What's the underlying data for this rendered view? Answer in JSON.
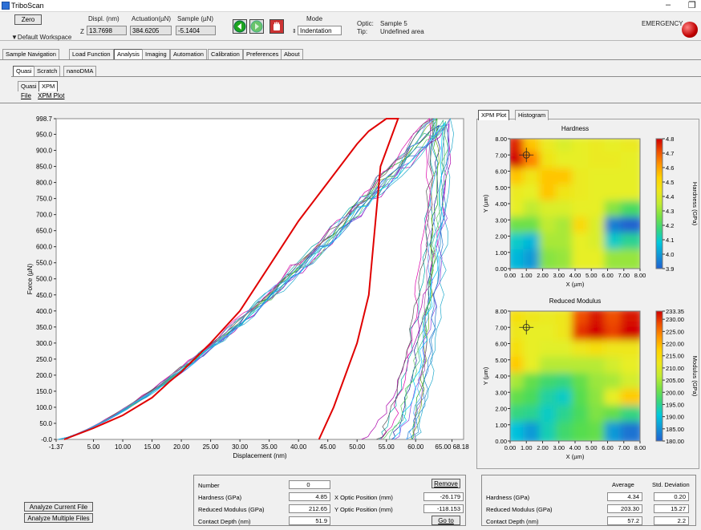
{
  "window": {
    "title": "TriboScan",
    "minimize": "–",
    "restore": "❐"
  },
  "toolbar": {
    "zero_label": "Zero",
    "z_label": "Z",
    "displ_label": "Displ. (nm)",
    "displ_value": "13.7698",
    "actuation_label": "Actuation(µN)",
    "actuation_value": "384.6205",
    "sample_label": "Sample (µN)",
    "sample_value": "-5.1404",
    "mode_label": "Mode",
    "mode_value": "Indentation",
    "optic_label": "Optic:",
    "optic_value": "Sample 5",
    "tip_label": "Tip:",
    "tip_value": "Undefined area",
    "emergency_label": "EMERGENCY",
    "workspace_label": "Default Workspace"
  },
  "main_tabs": [
    "Sample Navigation",
    "Load Function",
    "Analysis",
    "Imaging",
    "Automation",
    "Calibration",
    "Preferences",
    "About"
  ],
  "sub_tabs": [
    "Quasi",
    "Scratch",
    "nanoDMA"
  ],
  "sub_sub_tabs": [
    "Quasi",
    "XPM"
  ],
  "menu": [
    "File",
    "XPM Plot"
  ],
  "right_tabs": [
    "XPM Plot",
    "Histogram"
  ],
  "colors": {
    "accent_red": "#e00000",
    "heat_high": "#d00000",
    "heat_low": "#2060d0"
  },
  "chart_data": [
    {
      "type": "line",
      "title": "",
      "xlabel": "Displacement (nm)",
      "ylabel": "Force (µN)",
      "xlim": [
        -1.37,
        68.18
      ],
      "ylim": [
        -0.0,
        998.7
      ],
      "x_ticks": [
        "-1.37",
        "5.00",
        "10.00",
        "15.00",
        "20.00",
        "25.00",
        "30.00",
        "35.00",
        "40.00",
        "45.00",
        "50.00",
        "55.00",
        "60.00",
        "65.00 68.18"
      ],
      "y_ticks": [
        "998.7",
        "950.0",
        "900.0",
        "850.0",
        "800.0",
        "750.0",
        "700.0",
        "650.0",
        "600.0",
        "550.0",
        "500.0",
        "450.0",
        "400.0",
        "350.0",
        "300.0",
        "250.0",
        "200.0",
        "150.0",
        "100.0",
        "50.0",
        "-0.0"
      ],
      "series_count": 16,
      "highlight_series": {
        "loading": [
          [
            0,
            0
          ],
          [
            5,
            35
          ],
          [
            10,
            75
          ],
          [
            15,
            130
          ],
          [
            18,
            180
          ],
          [
            20,
            210
          ],
          [
            25,
            300
          ],
          [
            30,
            400
          ],
          [
            35,
            540
          ],
          [
            40,
            680
          ],
          [
            45,
            800
          ],
          [
            50,
            920
          ],
          [
            52,
            960
          ],
          [
            55,
            998.7
          ],
          [
            57,
            998.7
          ]
        ],
        "unloading": [
          [
            57,
            998.7
          ],
          [
            54,
            850
          ],
          [
            53,
            650
          ],
          [
            52,
            450
          ],
          [
            50,
            300
          ],
          [
            48,
            200
          ],
          [
            46,
            100
          ],
          [
            43.5,
            0
          ]
        ]
      }
    },
    {
      "type": "heatmap",
      "title": "Hardness",
      "xlabel": "X (µm)",
      "ylabel": "Y (µm)",
      "colorbar_label": "Hardness (GPa)",
      "x_ticks": [
        "0.00",
        "1.00",
        "2.00",
        "3.00",
        "4.00",
        "5.00",
        "6.00",
        "7.00",
        "8.00"
      ],
      "y_ticks": [
        "8.00",
        "7.00",
        "6.00",
        "5.00",
        "4.00",
        "3.00",
        "2.00",
        "1.00",
        "0.00"
      ],
      "colorbar_ticks": [
        "4.8",
        "4.7",
        "4.6",
        "4.5",
        "4.4",
        "4.3",
        "4.2",
        "4.1",
        "4.0",
        "3.9"
      ],
      "zlim": [
        3.9,
        4.8
      ],
      "grid": [
        [
          4.76,
          4.55,
          4.42,
          4.38,
          4.4,
          4.42,
          4.4,
          4.42
        ],
        [
          4.8,
          4.65,
          4.45,
          4.4,
          4.4,
          4.42,
          4.42,
          4.4
        ],
        [
          4.55,
          4.45,
          4.55,
          4.55,
          4.42,
          4.4,
          4.4,
          4.4
        ],
        [
          4.42,
          4.4,
          4.55,
          4.45,
          4.42,
          4.4,
          4.4,
          4.4
        ],
        [
          4.4,
          4.35,
          4.38,
          4.38,
          4.4,
          4.4,
          4.28,
          4.2
        ],
        [
          4.25,
          4.25,
          4.35,
          4.32,
          4.5,
          4.38,
          3.95,
          3.9
        ],
        [
          4.1,
          4.05,
          4.32,
          4.32,
          4.4,
          4.38,
          4.1,
          4.15
        ],
        [
          4.05,
          4.0,
          4.28,
          4.3,
          4.4,
          4.4,
          4.3,
          4.3
        ]
      ],
      "marker": [
        1.0,
        7.0
      ]
    },
    {
      "type": "heatmap",
      "title": "Reduced Modulus",
      "xlabel": "X (µm)",
      "ylabel": "Y (µm)",
      "colorbar_label": "Modulus (GPa)",
      "x_ticks": [
        "0.00",
        "1.00",
        "2.00",
        "3.00",
        "4.00",
        "5.00",
        "6.00",
        "7.00",
        "8.00"
      ],
      "y_ticks": [
        "8.00",
        "7.00",
        "6.00",
        "5.00",
        "4.00",
        "3.00",
        "2.00",
        "1.00",
        "0.00"
      ],
      "colorbar_ticks": [
        "233.35",
        "230.00",
        "225.00",
        "220.00",
        "215.00",
        "210.00",
        "205.00",
        "200.00",
        "195.00",
        "190.00",
        "185.00",
        "180.00"
      ],
      "zlim": [
        180.0,
        233.35
      ],
      "grid": [
        [
          214,
          212,
          211,
          212,
          228,
          232,
          228,
          232
        ],
        [
          212,
          210,
          210,
          212,
          230,
          233,
          229,
          233
        ],
        [
          214,
          210,
          209,
          209,
          212,
          214,
          212,
          212
        ],
        [
          218,
          210,
          206,
          206,
          206,
          206,
          208,
          210
        ],
        [
          205,
          200,
          197,
          196,
          200,
          204,
          205,
          208
        ],
        [
          200,
          198,
          194,
          192,
          199,
          203,
          210,
          218
        ],
        [
          196,
          195,
          192,
          195,
          198,
          202,
          200,
          196
        ],
        [
          190,
          186,
          193,
          197,
          199,
          200,
          186,
          182
        ]
      ],
      "marker": [
        1.0,
        7.0
      ]
    }
  ],
  "results": {
    "number_label": "Number",
    "number_value": "0",
    "remove_label": "Remove",
    "hardness_label": "Hardness (GPa)",
    "hardness_value": "4.85",
    "modulus_label": "Reduced Modulus (GPa)",
    "modulus_value": "212.65",
    "depth_label": "Contact Depth (nm)",
    "depth_value": "51.9",
    "x_optic_label": "X Optic Position (mm)",
    "x_optic_value": "-26.179",
    "y_optic_label": "Y Optic Position (mm)",
    "y_optic_value": "-118.153",
    "goto_label": "Go to"
  },
  "stats": {
    "average_label": "Average",
    "std_label": "Std. Deviation",
    "rows": [
      {
        "label": "Hardness (GPa)",
        "average": "4.34",
        "std": "0.20"
      },
      {
        "label": "Reduced Modulus (GPa)",
        "average": "203.30",
        "std": "15.27"
      },
      {
        "label": "Contact Depth (nm)",
        "average": "57.2",
        "std": "2.2"
      }
    ]
  },
  "buttons": {
    "analyze_current": "Analyze Current File",
    "analyze_multiple": "Analyze Multiple Files"
  }
}
